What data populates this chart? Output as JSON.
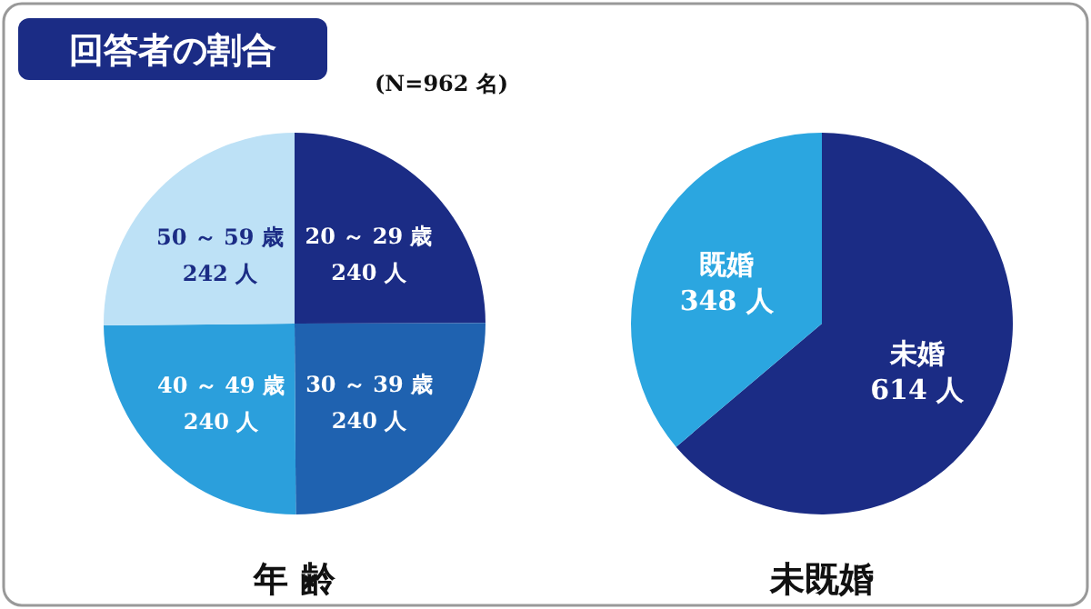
{
  "chart_data": [
    {
      "type": "pie",
      "title": "回答者の割合",
      "subtitle": "(N=962 名)",
      "xlabel": "年 齢",
      "categories": [
        "20 ～ 29 歳",
        "30 ～ 39 歳",
        "40 ～ 49 歳",
        "50 ～ 59 歳"
      ],
      "values": [
        240,
        240,
        240,
        242
      ],
      "value_labels": [
        "240 人",
        "240 人",
        "240 人",
        "242 人"
      ],
      "colors": [
        "#1b2c85",
        "#1f62b0",
        "#2b9fdc",
        "#bde1f6"
      ]
    },
    {
      "type": "pie",
      "xlabel": "未既婚",
      "categories": [
        "未婚",
        "既婚"
      ],
      "values": [
        614,
        348
      ],
      "value_labels": [
        "614 人",
        "348 人"
      ],
      "colors": [
        "#1b2c85",
        "#2ba6e0"
      ]
    }
  ]
}
